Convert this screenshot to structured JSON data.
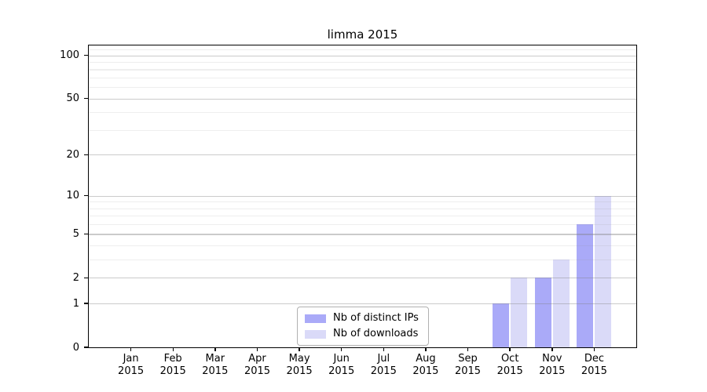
{
  "chart_data": {
    "type": "bar",
    "title": "limma 2015",
    "year": "2015",
    "categories": [
      "Jan",
      "Feb",
      "Mar",
      "Apr",
      "May",
      "Jun",
      "Jul",
      "Aug",
      "Sep",
      "Oct",
      "Nov",
      "Dec"
    ],
    "series": [
      {
        "name": "Nb of distinct IPs",
        "color": "#aaaaf8",
        "values": [
          0,
          0,
          0,
          0,
          0,
          0,
          0,
          0,
          0,
          1,
          2,
          6
        ]
      },
      {
        "name": "Nb of downloads",
        "color": "#dadaf8",
        "values": [
          0,
          0,
          0,
          0,
          0,
          0,
          0,
          0,
          0,
          2,
          3,
          10
        ]
      }
    ],
    "xlabel": "",
    "ylabel": "",
    "yscale": "log1p",
    "yticks": [
      0,
      1,
      2,
      5,
      10,
      20,
      50,
      100
    ],
    "minor_yticks": [
      3,
      4,
      6,
      7,
      8,
      9,
      30,
      40,
      60,
      70,
      80,
      90,
      110
    ],
    "ylim": [
      0,
      117
    ],
    "grid": "horizontal major+minor, drawn over bars",
    "legend_position": "lower center inside plot"
  }
}
